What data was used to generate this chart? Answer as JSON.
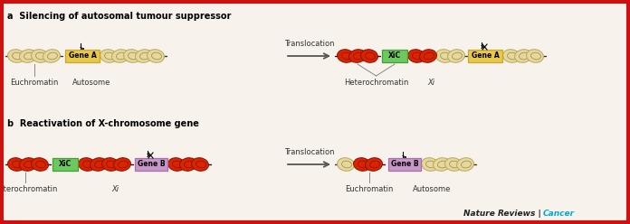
{
  "bg_color": "#f7f3ec",
  "border_color": "#cc1111",
  "panel_a_label": "a  Silencing of autosomal tumour suppressor",
  "panel_b_label": "b  Reactivation of X-chromosome gene",
  "translocation_text": "Translocation",
  "label_euchromatin": "Euchromatin",
  "label_autosome": "Autosome",
  "label_heterochromatin": "Heterochromatin",
  "label_xi": "Xi",
  "gene_a_color": "#e8c84a",
  "gene_a_border": "#c8a830",
  "gene_b_color": "#c896c8",
  "gene_b_border": "#a870a8",
  "xic_color": "#6cc860",
  "xic_border": "#44a030",
  "nuc_eu_fill": "#e8d898",
  "nuc_eu_edge": "#b8a860",
  "nuc_eu_line": "#333333",
  "nuc_het_fill": "#dd2200",
  "nuc_het_edge": "#881100",
  "nuc_het_line": "#111111",
  "nature_text": "Nature Reviews",
  "cancer_text": "Cancer",
  "cancer_color": "#00aacc",
  "fig_w": 6.96,
  "fig_h": 2.48,
  "dpi": 100
}
